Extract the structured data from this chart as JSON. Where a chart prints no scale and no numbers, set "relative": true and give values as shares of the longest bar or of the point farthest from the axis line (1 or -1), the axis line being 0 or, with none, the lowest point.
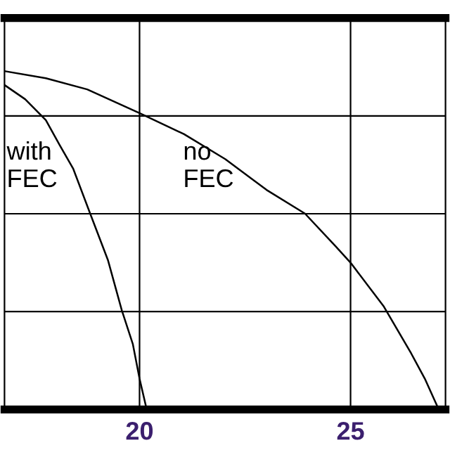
{
  "chart_data": {
    "type": "line",
    "relative": true,
    "grid": true,
    "legend": false,
    "marker": "none",
    "line_style": "solid",
    "xlim": [
      16.8,
      27.25
    ],
    "xticks": [
      20,
      25
    ],
    "series": [
      {
        "color": "#000000",
        "x": [
          16.8,
          17.29,
          17.78,
          18.11,
          18.43,
          18.83,
          19.25,
          19.58,
          19.84,
          20,
          20.17
        ],
        "values": [
          0.959,
          0.917,
          0.855,
          0.781,
          0.711,
          0.579,
          0.442,
          0.293,
          0.194,
          0.091,
          0
        ]
      },
      {
        "color": "#000000",
        "x": [
          16.8,
          17.78,
          18.76,
          20,
          21.05,
          22.03,
          23.01,
          23.92,
          24.64,
          25,
          25.78,
          26.44,
          26.76,
          27.09
        ],
        "values": [
          1,
          0.979,
          0.946,
          0.876,
          0.814,
          0.74,
          0.649,
          0.579,
          0.483,
          0.434,
          0.306,
          0.165,
          0.091,
          0
        ]
      }
    ],
    "annotations": [
      "with\nFEC",
      "no\nFEC"
    ]
  }
}
